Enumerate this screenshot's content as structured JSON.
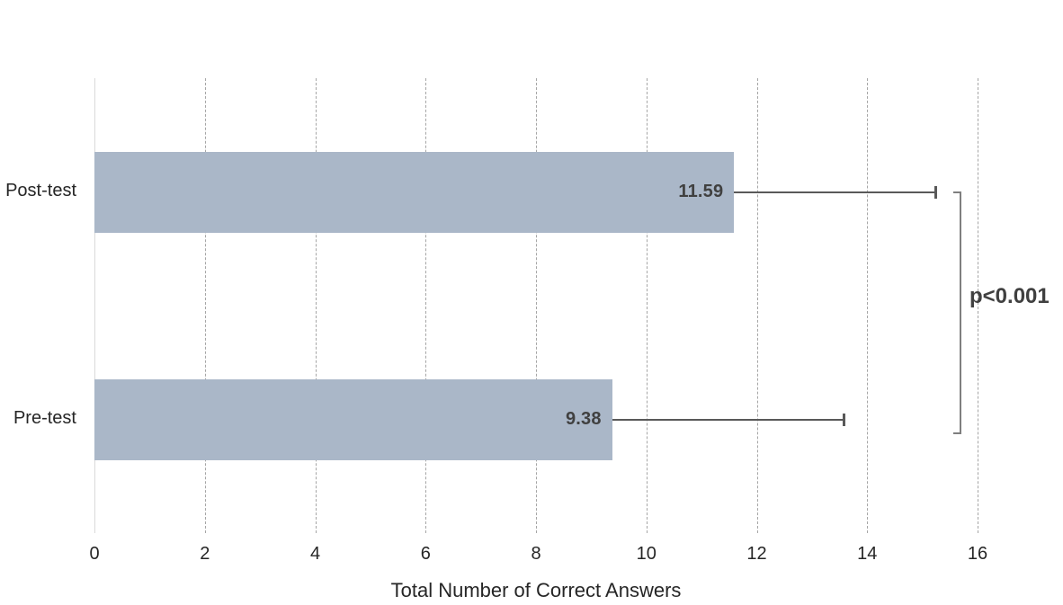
{
  "chart_data": {
    "type": "bar",
    "orientation": "horizontal",
    "title": "",
    "categories": [
      "Post-test",
      "Pre-test"
    ],
    "values": [
      11.59,
      9.38
    ],
    "value_labels": [
      "11.59",
      "9.38"
    ],
    "error_plus": [
      3.65,
      4.19
    ],
    "xlabel": "Total Number of Correct Answers",
    "xlim": [
      0,
      16
    ],
    "xticks": [
      0,
      2,
      4,
      6,
      8,
      10,
      12,
      14,
      16
    ],
    "grid": "vertical-dashed",
    "legend": "none",
    "annotation": {
      "text": "p<0.001",
      "type": "significance-bracket"
    }
  },
  "colors": {
    "bar_fill": "#aab7c8",
    "gridline": "#a6a6a6",
    "axis_line": "#d9d9d9",
    "error_bar": "#595959",
    "bracket": "#7f7f7f",
    "value_label": "#404040",
    "text": "#262626",
    "background": "#ffffff"
  }
}
